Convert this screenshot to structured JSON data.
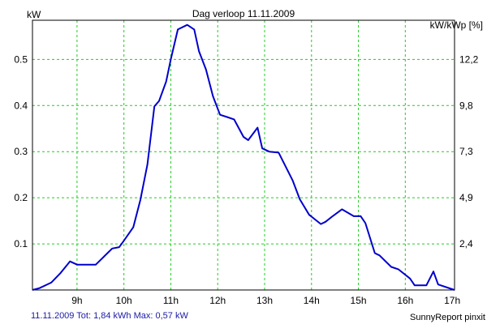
{
  "chart_data": {
    "type": "line",
    "title": "Dag  verloop 11.11.2009",
    "ylabel_left": "kW",
    "ylabel_right": "kW/kWp [%]",
    "x_ticks": [
      "9h",
      "10h",
      "11h",
      "12h",
      "13h",
      "14h",
      "15h",
      "16h",
      "17h"
    ],
    "x_tick_values": [
      9,
      10,
      11,
      12,
      13,
      14,
      15,
      16,
      17
    ],
    "y_ticks_left": [
      "0.1",
      "0.2",
      "0.3",
      "0.4",
      "0.5"
    ],
    "y_tick_values_left": [
      0.1,
      0.2,
      0.3,
      0.4,
      0.5
    ],
    "y_ticks_right": [
      "2,4",
      "4,9",
      "7,3",
      "9,8",
      "12,2"
    ],
    "xlim": [
      8.05,
      17.05
    ],
    "ylim": [
      0,
      0.585
    ],
    "grid": true,
    "series": [
      {
        "color": "#0000cc",
        "x": [
          8.05,
          8.2,
          8.45,
          8.65,
          8.85,
          9.0,
          9.15,
          9.4,
          9.75,
          9.9,
          10.0,
          10.2,
          10.35,
          10.5,
          10.65,
          10.75,
          10.9,
          11.0,
          11.15,
          11.35,
          11.5,
          11.6,
          11.75,
          11.9,
          12.05,
          12.2,
          12.35,
          12.55,
          12.65,
          12.85,
          12.95,
          13.1,
          13.3,
          13.6,
          13.75,
          13.95,
          14.2,
          14.3,
          14.45,
          14.65,
          14.9,
          15.05,
          15.15,
          15.35,
          15.45,
          15.7,
          15.85,
          16.1,
          16.2,
          16.45,
          16.6,
          16.7,
          17.05
        ],
        "y": [
          0.0,
          0.004,
          0.016,
          0.037,
          0.062,
          0.055,
          0.055,
          0.055,
          0.09,
          0.093,
          0.107,
          0.136,
          0.195,
          0.272,
          0.398,
          0.41,
          0.452,
          0.5,
          0.565,
          0.575,
          0.565,
          0.518,
          0.478,
          0.42,
          0.38,
          0.375,
          0.37,
          0.332,
          0.325,
          0.352,
          0.307,
          0.3,
          0.298,
          0.237,
          0.197,
          0.163,
          0.143,
          0.148,
          0.16,
          0.175,
          0.16,
          0.16,
          0.145,
          0.08,
          0.075,
          0.05,
          0.045,
          0.025,
          0.01,
          0.01,
          0.04,
          0.012,
          0.0
        ]
      }
    ]
  },
  "footer": {
    "left_text": "11.11.2009 Tot: 1,84 kWh Max: 0,57 kW",
    "right_text": "SunnyReport pinxit"
  }
}
